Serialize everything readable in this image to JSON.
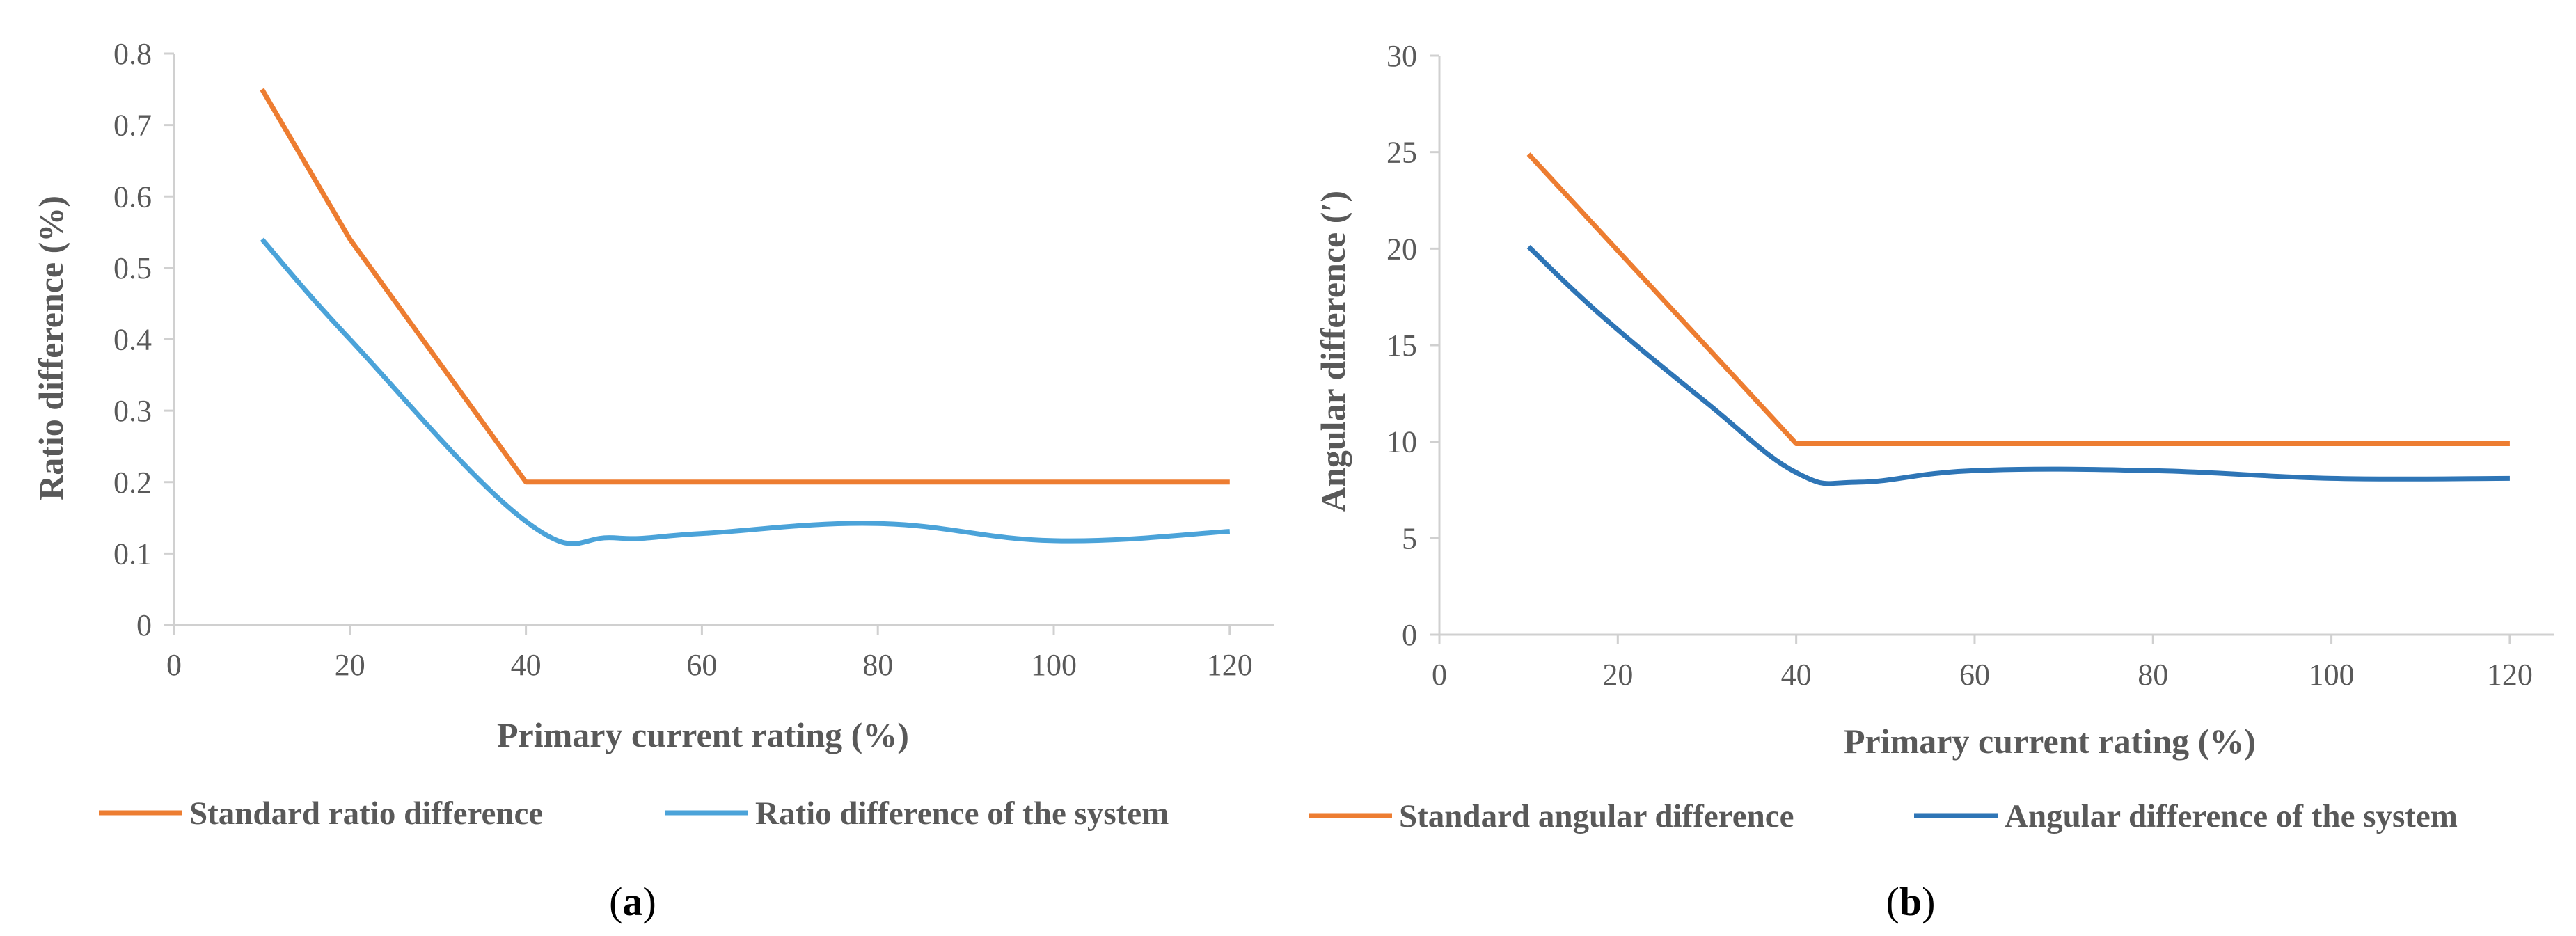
{
  "chart_data": [
    {
      "type": "line",
      "panel_label": "a",
      "title": "",
      "xlabel": "Primary current rating  (%)",
      "ylabel": "Ratio difference    (%)",
      "xlim": [
        0,
        125
      ],
      "ylim": [
        0,
        0.8
      ],
      "xticks": [
        0,
        20,
        40,
        60,
        80,
        100,
        120
      ],
      "yticks": [
        0,
        0.1,
        0.2,
        0.3,
        0.4,
        0.5,
        0.6,
        0.7,
        0.8
      ],
      "xtick_labels": [
        "0",
        "20",
        "40",
        "60",
        "80",
        "100",
        "120"
      ],
      "ytick_labels": [
        "0",
        "0.1",
        "0.2",
        "0.3",
        "0.4",
        "0.5",
        "0.6",
        "0.7",
        "0.8"
      ],
      "grid": false,
      "legend_position": "bottom",
      "series": [
        {
          "name": "Standard ratio difference",
          "color": "#ED7D31",
          "smooth": false,
          "x": [
            10,
            20,
            40,
            60,
            80,
            100,
            120
          ],
          "y": [
            0.75,
            0.54,
            0.2,
            0.2,
            0.2,
            0.2,
            0.2
          ]
        },
        {
          "name": "Ratio difference of the system",
          "color": "#4BA3D9",
          "smooth": true,
          "x": [
            10,
            20,
            40,
            50,
            60,
            80,
            100,
            120
          ],
          "y": [
            0.54,
            0.4,
            0.145,
            0.122,
            0.128,
            0.142,
            0.118,
            0.131
          ]
        }
      ]
    },
    {
      "type": "line",
      "panel_label": "b",
      "title": "",
      "xlabel": "Primary current rating  (%)",
      "ylabel": "Angular difference  (′)",
      "xlim": [
        0,
        125
      ],
      "ylim": [
        0,
        30
      ],
      "xticks": [
        0,
        20,
        40,
        60,
        80,
        100,
        120
      ],
      "yticks": [
        0,
        5,
        10,
        15,
        20,
        25,
        30
      ],
      "xtick_labels": [
        "0",
        "20",
        "40",
        "60",
        "80",
        "100",
        "120"
      ],
      "ytick_labels": [
        "0",
        "5",
        "10",
        "15",
        "20",
        "25",
        "30"
      ],
      "grid": false,
      "legend_position": "bottom",
      "series": [
        {
          "name": "Standard angular difference",
          "color": "#ED7D31",
          "smooth": false,
          "x": [
            10,
            40,
            60,
            80,
            100,
            120
          ],
          "y": [
            24.9,
            9.9,
            9.9,
            9.9,
            9.9,
            9.9
          ]
        },
        {
          "name": "Angular difference of the system",
          "color": "#2E75B6",
          "smooth": true,
          "x": [
            10,
            18,
            30,
            40,
            47,
            60,
            80,
            100,
            120
          ],
          "y": [
            20.1,
            16.6,
            12.0,
            8.4,
            7.9,
            8.5,
            8.5,
            8.1,
            8.1
          ]
        }
      ]
    }
  ]
}
